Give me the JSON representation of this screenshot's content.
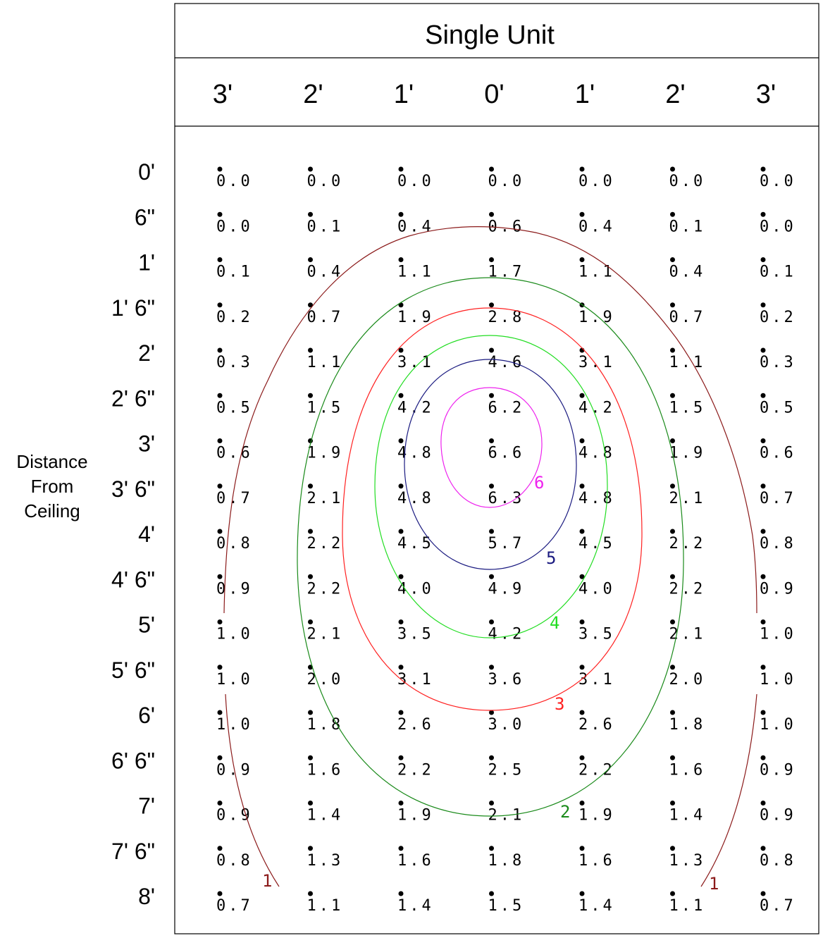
{
  "chart_data": {
    "type": "heatmap",
    "title": "Single Unit",
    "ylabel": "Distance From Ceiling",
    "ylabel_lines": [
      "Distance",
      "From",
      "Ceiling"
    ],
    "x_tick_labels": [
      "3'",
      "2'",
      "1'",
      "0'",
      "1'",
      "2'",
      "3'"
    ],
    "x_values_ft": [
      -3,
      -2,
      -1,
      0,
      1,
      2,
      3
    ],
    "y_tick_labels": [
      "0'",
      "6\"",
      "1'",
      "1' 6\"",
      "2'",
      "2' 6\"",
      "3'",
      "3' 6\"",
      "4'",
      "4' 6\"",
      "5'",
      "5' 6\"",
      "6'",
      "6' 6\"",
      "7'",
      "7' 6\"",
      "8'"
    ],
    "y_values_ft": [
      0,
      0.5,
      1,
      1.5,
      2,
      2.5,
      3,
      3.5,
      4,
      4.5,
      5,
      5.5,
      6,
      6.5,
      7,
      7.5,
      8
    ],
    "values": [
      [
        "0.0",
        "0.0",
        "0.0",
        "0.0",
        "0.0",
        "0.0",
        "0.0"
      ],
      [
        "0.0",
        "0.1",
        "0.4",
        "0.6",
        "0.4",
        "0.1",
        "0.0"
      ],
      [
        "0.1",
        "0.4",
        "1.1",
        "1.7",
        "1.1",
        "0.4",
        "0.1"
      ],
      [
        "0.2",
        "0.7",
        "1.9",
        "2.8",
        "1.9",
        "0.7",
        "0.2"
      ],
      [
        "0.3",
        "1.1",
        "3.1",
        "4.6",
        "3.1",
        "1.1",
        "0.3"
      ],
      [
        "0.5",
        "1.5",
        "4.2",
        "6.2",
        "4.2",
        "1.5",
        "0.5"
      ],
      [
        "0.6",
        "1.9",
        "4.8",
        "6.6",
        "4.8",
        "1.9",
        "0.6"
      ],
      [
        "0.7",
        "2.1",
        "4.8",
        "6.3",
        "4.8",
        "2.1",
        "0.7"
      ],
      [
        "0.8",
        "2.2",
        "4.5",
        "5.7",
        "4.5",
        "2.2",
        "0.8"
      ],
      [
        "0.9",
        "2.2",
        "4.0",
        "4.9",
        "4.0",
        "2.2",
        "0.9"
      ],
      [
        "1.0",
        "2.1",
        "3.5",
        "4.2",
        "3.5",
        "2.1",
        "1.0"
      ],
      [
        "1.0",
        "2.0",
        "3.1",
        "3.6",
        "3.1",
        "2.0",
        "1.0"
      ],
      [
        "1.0",
        "1.8",
        "2.6",
        "3.0",
        "2.6",
        "1.8",
        "1.0"
      ],
      [
        "0.9",
        "1.6",
        "2.2",
        "2.5",
        "2.2",
        "1.6",
        "0.9"
      ],
      [
        "0.9",
        "1.4",
        "1.9",
        "2.1",
        "1.9",
        "1.4",
        "0.9"
      ],
      [
        "0.8",
        "1.3",
        "1.6",
        "1.8",
        "1.6",
        "1.3",
        "0.8"
      ],
      [
        "0.7",
        "1.1",
        "1.4",
        "1.5",
        "1.4",
        "1.1",
        "0.7"
      ]
    ],
    "contours": [
      {
        "level": "1",
        "color": "#8b1a1a",
        "labels": [
          "1",
          "1"
        ]
      },
      {
        "level": "2",
        "color": "#1a8a1a",
        "labels": [
          "2"
        ]
      },
      {
        "level": "3",
        "color": "#ff2020",
        "labels": [
          "3"
        ]
      },
      {
        "level": "4",
        "color": "#22dd22",
        "labels": [
          "4"
        ]
      },
      {
        "level": "5",
        "color": "#1a1a80",
        "labels": [
          "5"
        ]
      },
      {
        "level": "6",
        "color": "#ee22ee",
        "labels": [
          "6"
        ]
      }
    ],
    "grid": false
  }
}
